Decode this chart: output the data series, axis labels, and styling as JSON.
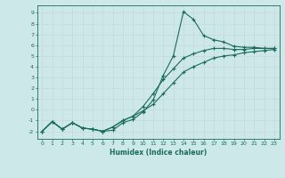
{
  "xlabel": "Humidex (Indice chaleur)",
  "bg_color": "#cce8e8",
  "line_color": "#1a6b5a",
  "grid_color": "#b8d8d8",
  "xlim": [
    -0.5,
    23.5
  ],
  "ylim": [
    -2.7,
    9.7
  ],
  "xticks": [
    0,
    1,
    2,
    3,
    4,
    5,
    6,
    7,
    8,
    9,
    10,
    11,
    12,
    13,
    14,
    15,
    16,
    17,
    18,
    19,
    20,
    21,
    22,
    23
  ],
  "yticks": [
    -2,
    -1,
    0,
    1,
    2,
    3,
    4,
    5,
    6,
    7,
    8,
    9
  ],
  "line1_x": [
    0,
    1,
    2,
    3,
    4,
    5,
    6,
    7,
    8,
    9,
    10,
    11,
    12,
    13,
    14,
    15,
    16,
    17,
    18,
    19,
    20,
    21,
    22,
    23
  ],
  "line1_y": [
    -2.0,
    -1.1,
    -1.8,
    -1.2,
    -1.7,
    -1.8,
    -2.0,
    -1.9,
    -1.2,
    -0.9,
    -0.2,
    0.9,
    3.2,
    5.0,
    9.1,
    8.4,
    6.9,
    6.5,
    6.3,
    5.9,
    5.8,
    5.8,
    5.7,
    5.7
  ],
  "line2_x": [
    0,
    1,
    2,
    3,
    4,
    5,
    6,
    7,
    8,
    9,
    10,
    11,
    12,
    13,
    14,
    15,
    16,
    17,
    18,
    19,
    20,
    21,
    22,
    23
  ],
  "line2_y": [
    -2.0,
    -1.1,
    -1.8,
    -1.2,
    -1.7,
    -1.8,
    -2.0,
    -1.6,
    -1.0,
    -0.6,
    0.3,
    1.5,
    2.8,
    3.8,
    4.8,
    5.2,
    5.5,
    5.7,
    5.7,
    5.6,
    5.6,
    5.7,
    5.7,
    5.7
  ],
  "line3_x": [
    0,
    1,
    2,
    3,
    4,
    5,
    6,
    7,
    8,
    9,
    10,
    11,
    12,
    13,
    14,
    15,
    16,
    17,
    18,
    19,
    20,
    21,
    22,
    23
  ],
  "line3_y": [
    -2.0,
    -1.1,
    -1.8,
    -1.2,
    -1.7,
    -1.8,
    -2.0,
    -1.6,
    -1.0,
    -0.6,
    -0.1,
    0.5,
    1.5,
    2.5,
    3.5,
    4.0,
    4.4,
    4.8,
    5.0,
    5.1,
    5.3,
    5.4,
    5.5,
    5.6
  ]
}
